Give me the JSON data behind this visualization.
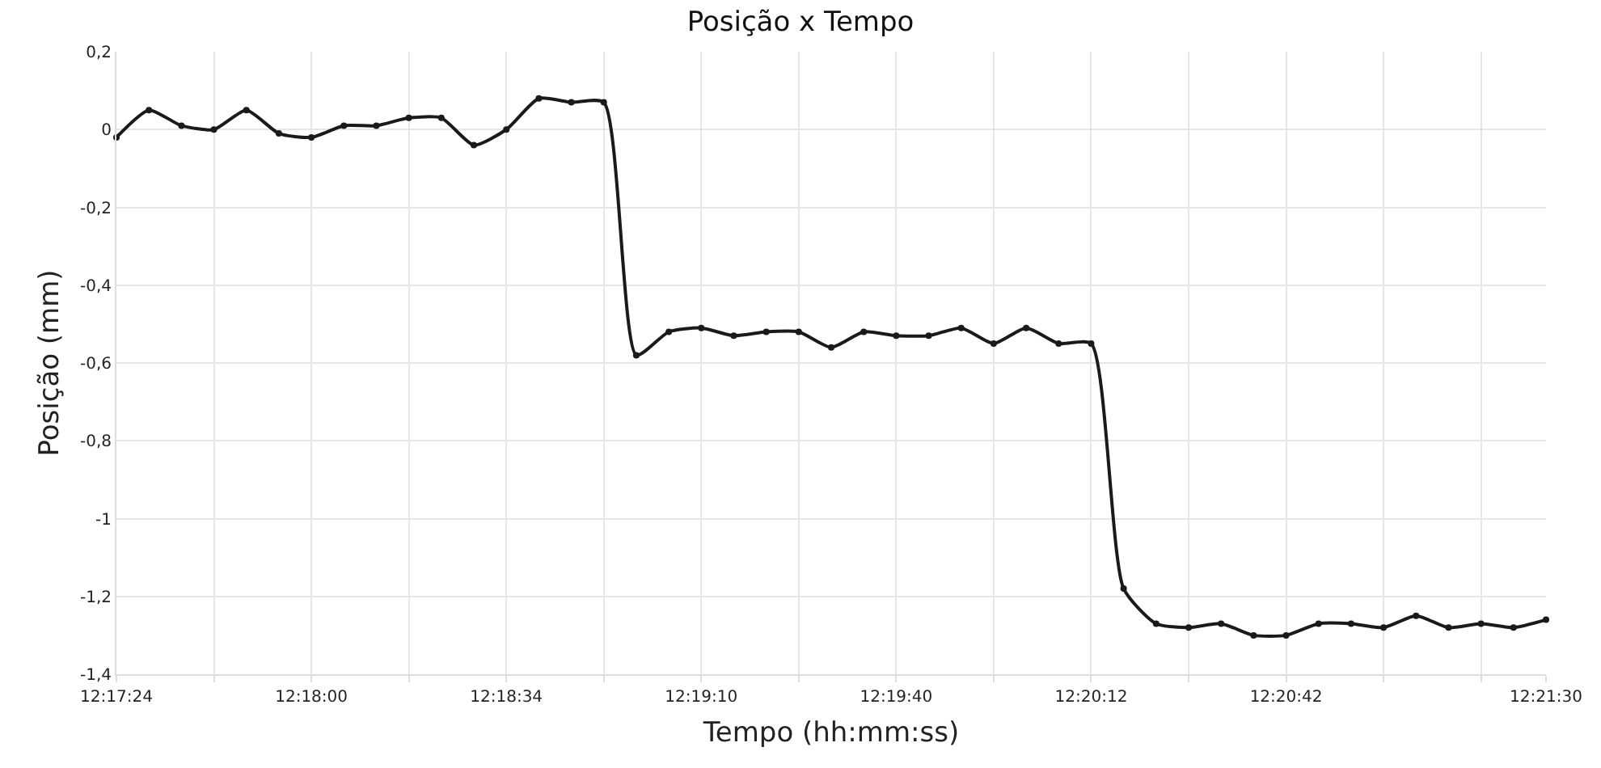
{
  "chart_data": {
    "type": "line",
    "title": "Posição x Tempo",
    "xlabel": "Tempo (hh:mm:ss)",
    "ylabel": "Posição (mm)",
    "categories": [
      "12:17:24",
      null,
      null,
      null,
      null,
      null,
      "12:18:00",
      null,
      null,
      null,
      null,
      null,
      "12:18:34",
      null,
      null,
      null,
      null,
      null,
      "12:19:10",
      null,
      null,
      null,
      null,
      null,
      "12:19:40",
      null,
      null,
      null,
      null,
      null,
      "12:20:12",
      null,
      null,
      null,
      null,
      null,
      "12:20:42",
      null,
      null,
      null,
      null,
      null,
      null,
      null,
      "12:21:30"
    ],
    "series": [
      {
        "color": "#1a1a1a",
        "values": [
          -0.02,
          0.05,
          0.01,
          0.0,
          0.05,
          -0.01,
          -0.02,
          0.01,
          0.01,
          0.03,
          0.03,
          -0.04,
          0.0,
          0.08,
          0.07,
          0.07,
          -0.58,
          -0.52,
          -0.51,
          -0.53,
          -0.52,
          -0.52,
          -0.56,
          -0.52,
          -0.53,
          -0.53,
          -0.51,
          -0.55,
          -0.51,
          -0.55,
          -0.55,
          -1.18,
          -1.27,
          -1.28,
          -1.27,
          -1.3,
          -1.3,
          -1.27,
          -1.27,
          -1.28,
          -1.25,
          -1.28,
          -1.27,
          -1.28,
          -1.26
        ]
      }
    ],
    "ylim": [
      -1.4,
      0.2
    ],
    "yticks": [
      {
        "value": -1.4,
        "label": "-1,4"
      },
      {
        "value": -1.2,
        "label": "-1,2"
      },
      -1,
      {
        "value": -0.8,
        "label": "-0,8"
      },
      {
        "value": -0.6,
        "label": "-0,6"
      },
      {
        "value": -0.4,
        "label": "-0,4"
      },
      {
        "value": -0.2,
        "label": "-0,2"
      },
      0,
      {
        "value": 0.2,
        "label": "0,2"
      }
    ],
    "grid": true,
    "marker": "circle",
    "line_style": "solid"
  }
}
